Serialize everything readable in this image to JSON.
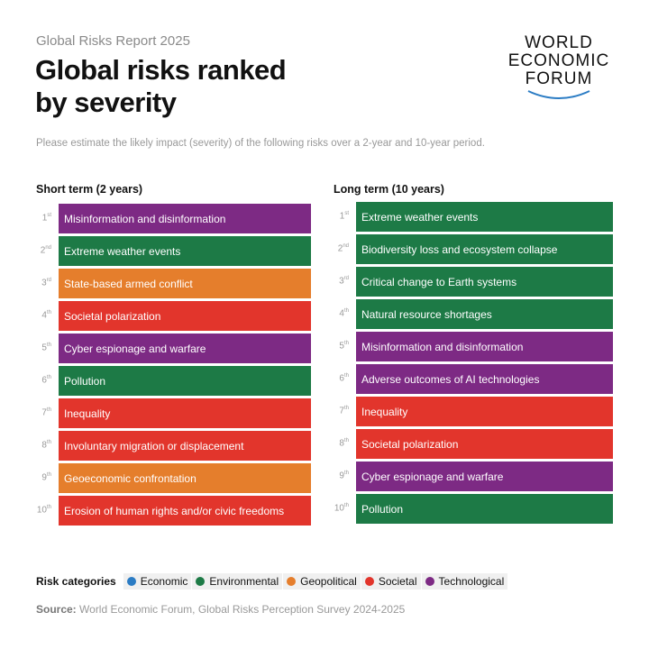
{
  "header": {
    "kicker": "Global Risks Report 2025",
    "title_lines": [
      "Global risks ranked",
      "by severity"
    ],
    "logo_lines": [
      "WORLD",
      "ECONOMIC",
      "FORUM"
    ]
  },
  "subtitle": "Please estimate the likely impact (severity) of the following risks over a 2-year and 10-year period.",
  "columns": [
    {
      "heading": "Short term (2 years)",
      "items": [
        {
          "rank": "1",
          "suffix": "st",
          "label": "Misinformation and disinformation",
          "color": "#7d2a84"
        },
        {
          "rank": "2",
          "suffix": "nd",
          "label": "Extreme weather events",
          "color": "#1d7a46"
        },
        {
          "rank": "3",
          "suffix": "rd",
          "label": "State-based armed conflict",
          "color": "#e57e2c"
        },
        {
          "rank": "4",
          "suffix": "th",
          "label": "Societal polarization",
          "color": "#e2352c"
        },
        {
          "rank": "5",
          "suffix": "th",
          "label": "Cyber espionage and warfare",
          "color": "#7d2a84"
        },
        {
          "rank": "6",
          "suffix": "th",
          "label": "Pollution",
          "color": "#1d7a46"
        },
        {
          "rank": "7",
          "suffix": "th",
          "label": "Inequality",
          "color": "#e2352c"
        },
        {
          "rank": "8",
          "suffix": "th",
          "label": "Involuntary migration or displacement",
          "color": "#e2352c"
        },
        {
          "rank": "9",
          "suffix": "th",
          "label": "Geoeconomic confrontation",
          "color": "#e57e2c"
        },
        {
          "rank": "10",
          "suffix": "th",
          "label": "Erosion of human rights and/or civic freedoms",
          "color": "#e2352c"
        }
      ]
    },
    {
      "heading": "Long term (10 years)",
      "items": [
        {
          "rank": "1",
          "suffix": "st",
          "label": "Extreme weather events",
          "color": "#1d7a46"
        },
        {
          "rank": "2",
          "suffix": "nd",
          "label": "Biodiversity loss and ecosystem collapse",
          "color": "#1d7a46"
        },
        {
          "rank": "3",
          "suffix": "rd",
          "label": "Critical change to Earth systems",
          "color": "#1d7a46"
        },
        {
          "rank": "4",
          "suffix": "th",
          "label": "Natural resource shortages",
          "color": "#1d7a46"
        },
        {
          "rank": "5",
          "suffix": "th",
          "label": "Misinformation and disinformation",
          "color": "#7d2a84"
        },
        {
          "rank": "6",
          "suffix": "th",
          "label": "Adverse outcomes of AI technologies",
          "color": "#7d2a84"
        },
        {
          "rank": "7",
          "suffix": "th",
          "label": "Inequality",
          "color": "#e2352c"
        },
        {
          "rank": "8",
          "suffix": "th",
          "label": "Societal polarization",
          "color": "#e2352c"
        },
        {
          "rank": "9",
          "suffix": "th",
          "label": "Cyber espionage and warfare",
          "color": "#7d2a84"
        },
        {
          "rank": "10",
          "suffix": "th",
          "label": "Pollution",
          "color": "#1d7a46"
        }
      ]
    }
  ],
  "legend": {
    "label": "Risk categories",
    "items": [
      {
        "name": "Economic",
        "color": "#2b7cc4"
      },
      {
        "name": "Environmental",
        "color": "#1d7a46"
      },
      {
        "name": "Geopolitical",
        "color": "#e57e2c"
      },
      {
        "name": "Societal",
        "color": "#e2352c"
      },
      {
        "name": "Technological",
        "color": "#7d2a84"
      }
    ]
  },
  "source": {
    "label": "Source:",
    "text": "World Economic Forum, Global Risks Perception Survey 2024-2025"
  }
}
